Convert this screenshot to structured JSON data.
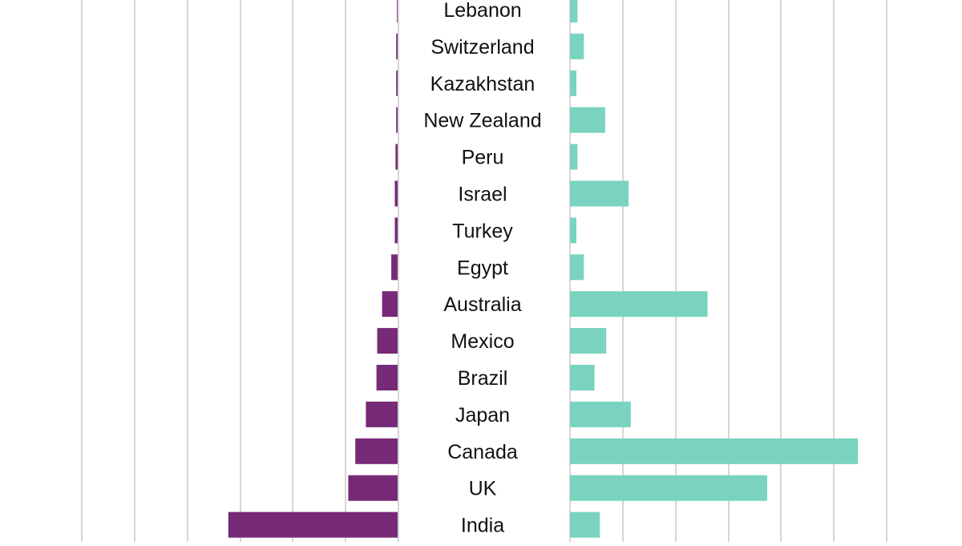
{
  "chart_data": {
    "type": "bar",
    "orientation": "horizontal",
    "layout": "diverging-butterfly",
    "title": "",
    "categories": [
      "Lebanon",
      "Switzerland",
      "Kazakhstan",
      "New Zealand",
      "Peru",
      "Israel",
      "Turkey",
      "Egypt",
      "Australia",
      "Mexico",
      "Brazil",
      "Japan",
      "Canada",
      "UK",
      "India"
    ],
    "series": [
      {
        "side": "left",
        "color": "#762a77",
        "values": [
          0.1,
          0.2,
          0.2,
          0.2,
          0.3,
          0.4,
          0.4,
          0.9,
          2.2,
          2.9,
          3.0,
          4.5,
          6.0,
          7.0,
          24.0
        ]
      },
      {
        "side": "right",
        "color": "#79d3bf",
        "values": [
          0.7,
          1.3,
          0.6,
          3.3,
          0.7,
          5.5,
          0.6,
          1.3,
          12.9,
          3.4,
          2.3,
          5.7,
          27.0,
          18.5,
          2.8
        ]
      }
    ],
    "gridlines": true
  }
}
